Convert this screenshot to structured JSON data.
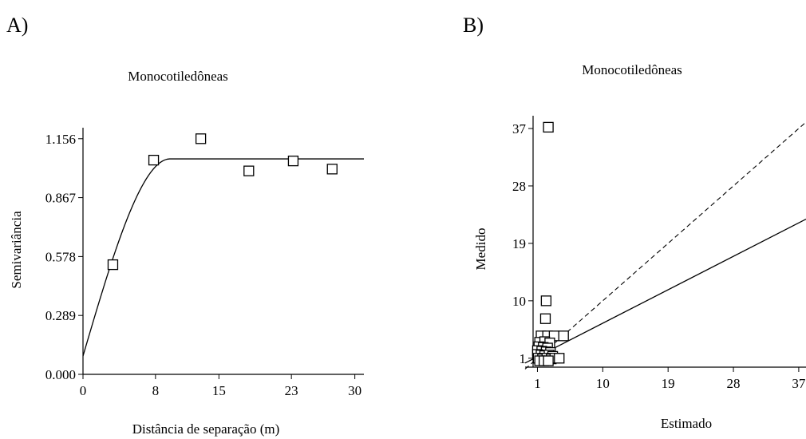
{
  "chart_data": [
    {
      "panel_label": "A)",
      "type": "scatter",
      "title": "Monocotiledôneas",
      "xlabel": "Distância de separação (m)",
      "ylabel": "Semivariância",
      "xlim": [
        0,
        31
      ],
      "ylim": [
        0,
        1.21
      ],
      "xticks": [
        0,
        8,
        15,
        23,
        30
      ],
      "xtick_labels": [
        "0",
        "8",
        "15",
        "23",
        "30"
      ],
      "yticks": [
        0,
        0.289,
        0.578,
        0.867,
        1.156
      ],
      "ytick_labels": [
        "0.000",
        "0.289",
        "0.578",
        "0.867",
        "1.156"
      ],
      "grid": false,
      "points": [
        {
          "x": 3.3,
          "y": 0.538
        },
        {
          "x": 7.8,
          "y": 1.051
        },
        {
          "x": 13.0,
          "y": 1.156
        },
        {
          "x": 18.3,
          "y": 0.998
        },
        {
          "x": 23.2,
          "y": 1.047
        },
        {
          "x": 27.5,
          "y": 1.007
        }
      ],
      "model": {
        "type": "spherical",
        "nugget": 0.09,
        "sill": 1.057,
        "range": 9.6
      }
    },
    {
      "panel_label": "B)",
      "type": "scatter",
      "title": "Monocotiledôneas",
      "xlabel": "Estimado",
      "ylabel": "Medido",
      "xlim": [
        -0.7,
        38
      ],
      "ylim": [
        -0.4,
        39
      ],
      "xticks": [
        1,
        10,
        19,
        28,
        37
      ],
      "xtick_labels": [
        "1",
        "10",
        "19",
        "28",
        "37"
      ],
      "yticks": [
        1,
        10,
        19,
        28,
        37
      ],
      "ytick_labels": [
        "1",
        "10",
        "19",
        "28",
        "37"
      ],
      "grid": false,
      "points": [
        {
          "x": 2.5,
          "y": 37.2
        },
        {
          "x": 2.2,
          "y": 10.0
        },
        {
          "x": 2.1,
          "y": 7.2
        },
        {
          "x": 1.5,
          "y": 4.5
        },
        {
          "x": 2.4,
          "y": 4.5
        },
        {
          "x": 3.3,
          "y": 4.5
        },
        {
          "x": 4.6,
          "y": 4.5
        },
        {
          "x": 1.3,
          "y": 3.5
        },
        {
          "x": 2.0,
          "y": 3.6
        },
        {
          "x": 2.7,
          "y": 3.4
        },
        {
          "x": 1.2,
          "y": 2.8
        },
        {
          "x": 1.8,
          "y": 2.7
        },
        {
          "x": 2.4,
          "y": 2.6
        },
        {
          "x": 1.0,
          "y": 2.2
        },
        {
          "x": 1.6,
          "y": 2.1
        },
        {
          "x": 2.2,
          "y": 2.0
        },
        {
          "x": 2.8,
          "y": 1.9
        },
        {
          "x": 1.0,
          "y": 1.6
        },
        {
          "x": 1.5,
          "y": 1.5
        },
        {
          "x": 2.0,
          "y": 1.4
        },
        {
          "x": 2.6,
          "y": 1.5
        },
        {
          "x": 3.1,
          "y": 1.3
        },
        {
          "x": 1.1,
          "y": 1.0
        },
        {
          "x": 1.7,
          "y": 0.9
        },
        {
          "x": 2.3,
          "y": 1.0
        },
        {
          "x": 2.9,
          "y": 0.9
        },
        {
          "x": 3.4,
          "y": 1.0
        },
        {
          "x": 4.0,
          "y": 1.0
        },
        {
          "x": 1.3,
          "y": 0.6
        },
        {
          "x": 1.9,
          "y": 0.6
        },
        {
          "x": 2.5,
          "y": 0.6
        }
      ],
      "lines": [
        {
          "style": "dashed",
          "from": [
            -0.7,
            -0.7
          ],
          "to": [
            38,
            38
          ]
        },
        {
          "style": "solid",
          "from": [
            -0.7,
            0.25
          ],
          "to": [
            38,
            22.8
          ]
        }
      ]
    }
  ]
}
